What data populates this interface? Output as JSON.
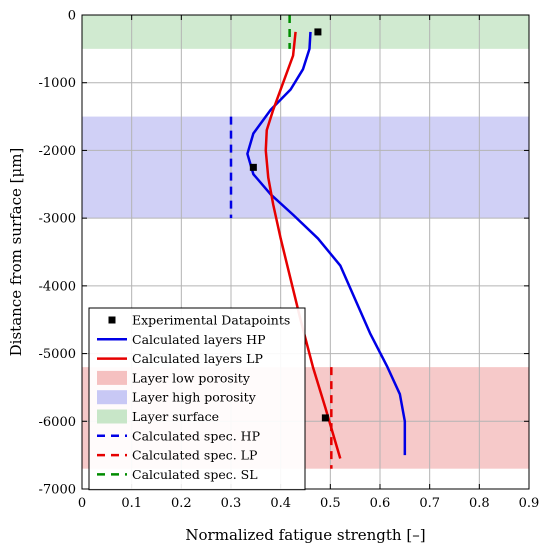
{
  "chart_data": {
    "type": "line",
    "xlabel": "Normalized fatigue strength [–]",
    "ylabel": "Distance from surface [μm]",
    "xlim": [
      0,
      0.9
    ],
    "ylim": [
      -7000,
      0
    ],
    "x_ticks": [
      "0",
      "0.1",
      "0.2",
      "0.3",
      "0.4",
      "0.5",
      "0.6",
      "0.7",
      "0.8",
      "0.9"
    ],
    "y_ticks": [
      "0",
      "-1000",
      "-2000",
      "-3000",
      "-4000",
      "-5000",
      "-6000",
      "-7000"
    ],
    "grid": true,
    "legend_position": "bottom-left",
    "bands": [
      {
        "name": "Layer surface",
        "color": "#c8e6c8",
        "y_from": -500,
        "y_to": 0
      },
      {
        "name": "Layer high porosity",
        "color": "#c8c8f5",
        "y_from": -3000,
        "y_to": -1500
      },
      {
        "name": "Layer low porosity",
        "color": "#f5c0c0",
        "y_from": -6700,
        "y_to": -5200
      }
    ],
    "series": [
      {
        "name": "Calculated layers HP",
        "color": "#0000e6",
        "style": "solid",
        "points": [
          [
            0.46,
            -250
          ],
          [
            0.458,
            -500
          ],
          [
            0.445,
            -800
          ],
          [
            0.42,
            -1100
          ],
          [
            0.38,
            -1400
          ],
          [
            0.345,
            -1750
          ],
          [
            0.333,
            -2050
          ],
          [
            0.345,
            -2350
          ],
          [
            0.38,
            -2650
          ],
          [
            0.425,
            -2950
          ],
          [
            0.475,
            -3300
          ],
          [
            0.52,
            -3700
          ],
          [
            0.55,
            -4200
          ],
          [
            0.58,
            -4700
          ],
          [
            0.615,
            -5200
          ],
          [
            0.64,
            -5600
          ],
          [
            0.65,
            -6000
          ],
          [
            0.65,
            -6500
          ]
        ]
      },
      {
        "name": "Calculated layers LP",
        "color": "#e60000",
        "style": "solid",
        "points": [
          [
            0.43,
            -250
          ],
          [
            0.425,
            -600
          ],
          [
            0.405,
            -1000
          ],
          [
            0.385,
            -1400
          ],
          [
            0.372,
            -1700
          ],
          [
            0.37,
            -2000
          ],
          [
            0.375,
            -2400
          ],
          [
            0.385,
            -2800
          ],
          [
            0.4,
            -3300
          ],
          [
            0.42,
            -3900
          ],
          [
            0.44,
            -4500
          ],
          [
            0.465,
            -5200
          ],
          [
            0.49,
            -5800
          ],
          [
            0.51,
            -6300
          ],
          [
            0.52,
            -6550
          ]
        ]
      },
      {
        "name": "Calculated spec. HP",
        "color": "#0000e6",
        "style": "dashed",
        "points": [
          [
            0.3,
            -1500
          ],
          [
            0.3,
            -3000
          ]
        ]
      },
      {
        "name": "Calculated spec. LP",
        "color": "#e60000",
        "style": "dashed",
        "points": [
          [
            0.502,
            -5200
          ],
          [
            0.502,
            -6700
          ]
        ]
      },
      {
        "name": "Calculated spec. SL",
        "color": "#008c00",
        "style": "dashed",
        "points": [
          [
            0.418,
            0
          ],
          [
            0.418,
            -500
          ]
        ]
      }
    ],
    "experimental": {
      "name": "Experimental Datapoints",
      "color": "#000000",
      "points": [
        [
          0.475,
          -250
        ],
        [
          0.345,
          -2250
        ],
        [
          0.49,
          -5950
        ]
      ]
    },
    "legend_entries": [
      {
        "label": "Experimental Datapoints",
        "kind": "square",
        "color": "#000000"
      },
      {
        "label": "Calculated layers HP",
        "kind": "line",
        "color": "#0000e6"
      },
      {
        "label": "Calculated layers LP",
        "kind": "line",
        "color": "#e60000"
      },
      {
        "label": "Layer low porosity",
        "kind": "patch",
        "color": "#f5c0c0"
      },
      {
        "label": "Layer high porosity",
        "kind": "patch",
        "color": "#c8c8f5"
      },
      {
        "label": "Layer surface",
        "kind": "patch",
        "color": "#c8e6c8"
      },
      {
        "label": "Calculated spec. HP",
        "kind": "dash",
        "color": "#0000e6"
      },
      {
        "label": "Calculated spec. LP",
        "kind": "dash",
        "color": "#e60000"
      },
      {
        "label": "Calculated spec. SL",
        "kind": "dash",
        "color": "#008c00"
      }
    ]
  }
}
